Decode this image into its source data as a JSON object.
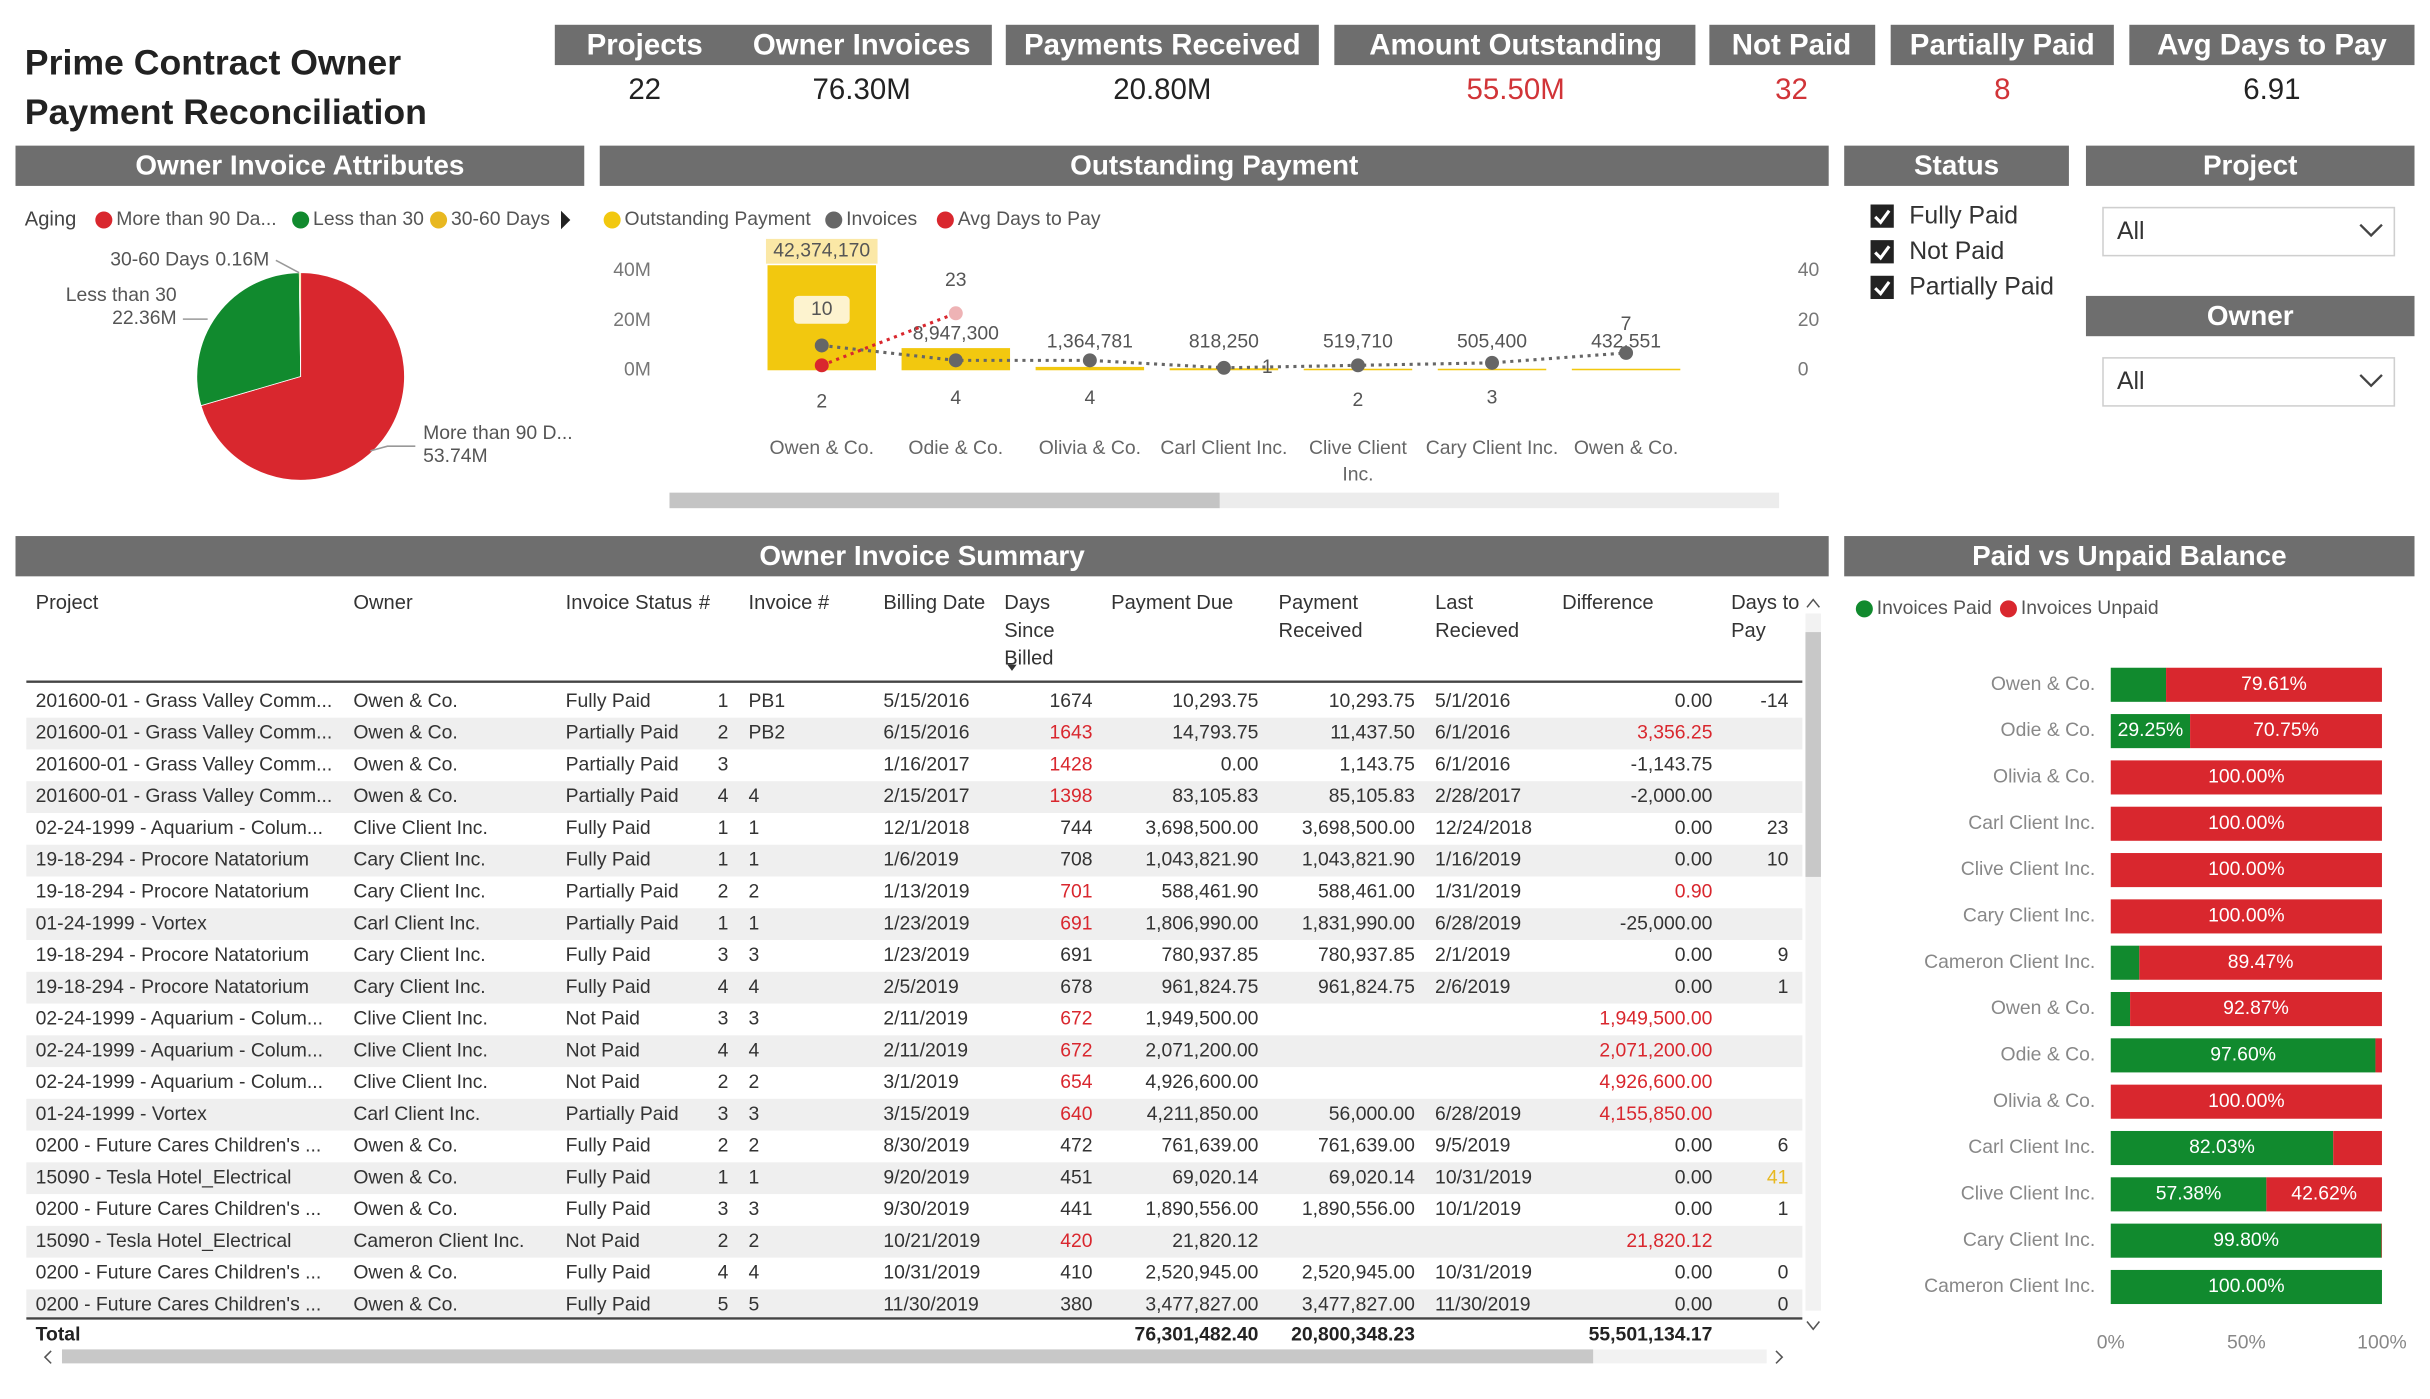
{
  "title": "Prime Contract Owner Payment Reconciliation",
  "kpis": [
    {
      "label": "Projects",
      "value": "22",
      "color": "#222222"
    },
    {
      "label": "Owner Invoices",
      "value": "76.30M",
      "color": "#222222"
    },
    {
      "label": "Payments Received",
      "value": "20.80M",
      "color": "#222222"
    },
    {
      "label": "Amount Outstanding",
      "value": "55.50M",
      "color": "#d13438"
    },
    {
      "label": "Not Paid",
      "value": "32",
      "color": "#d13438"
    },
    {
      "label": "Partially Paid",
      "value": "8",
      "color": "#d13438"
    },
    {
      "label": "Avg Days to Pay",
      "value": "6.91",
      "color": "#222222"
    }
  ],
  "slicers": {
    "status": {
      "title": "Status",
      "options": [
        "Fully Paid",
        "Not Paid",
        "Partially Paid"
      ],
      "checked": [
        true,
        true,
        true
      ]
    },
    "project": {
      "title": "Project",
      "selected": "All"
    },
    "owner": {
      "title": "Owner",
      "selected": "All"
    }
  },
  "chart_data": [
    {
      "type": "pie",
      "title": "Owner Invoice Attributes",
      "legend_title": "Aging",
      "categories": [
        "More than 90 Da...",
        "Less than 30",
        "30-60 Days"
      ],
      "label_names": [
        "More than 90 D...",
        "Less than 30",
        "30-60 Days"
      ],
      "values": [
        53.74,
        22.36,
        0.16
      ],
      "value_labels": [
        "53.74M",
        "22.36M",
        "0.16M"
      ],
      "colors": [
        "#d9272e",
        "#118a2e",
        "#e8b820"
      ]
    },
    {
      "type": "combo",
      "title": "Outstanding Payment",
      "categories": [
        "Owen & Co.",
        "Odie & Co.",
        "Olivia & Co.",
        "Carl Client Inc.",
        "Clive Client Inc.",
        "Cary Client Inc.",
        "Owen & Co."
      ],
      "series": [
        {
          "name": "Outstanding Payment",
          "type": "bar",
          "color": "#f2c80f",
          "values": [
            42374170,
            8947300,
            1364781,
            818250,
            519710,
            505400,
            432551
          ],
          "value_labels": [
            "42,374,170",
            "8,947,300",
            "1,364,781",
            "818,250",
            "519,710",
            "505,400",
            "432,551"
          ]
        },
        {
          "name": "Invoices",
          "type": "line",
          "axis": "y2",
          "color": "#666666",
          "line_style": "dotted",
          "values": [
            10,
            4,
            4,
            1,
            2,
            3,
            7
          ]
        },
        {
          "name": "Avg Days to Pay",
          "type": "line",
          "axis": "y2",
          "color": "#d9272e",
          "line_style": "dotted",
          "values": [
            2,
            23,
            null,
            null,
            null,
            null,
            null
          ]
        }
      ],
      "ylim": [
        0,
        40000000
      ],
      "yticks": [
        {
          "value": 0,
          "label": "0M"
        },
        {
          "value": 20000000,
          "label": "20M"
        },
        {
          "value": 40000000,
          "label": "40M"
        }
      ],
      "y2lim": [
        0,
        40
      ],
      "y2ticks": [
        0,
        20,
        40
      ]
    },
    {
      "type": "stacked_hbar",
      "title": "Paid vs Unpaid Balance",
      "categories": [
        "Owen & Co.",
        "Odie & Co.",
        "Olivia & Co.",
        "Carl Client Inc.",
        "Clive Client Inc.",
        "Cary Client Inc.",
        "Cameron Client Inc.",
        "Owen & Co.",
        "Odie & Co.",
        "Olivia & Co.",
        "Carl Client Inc.",
        "Clive Client Inc.",
        "Cary Client Inc.",
        "Cameron Client Inc."
      ],
      "series": [
        {
          "name": "Invoices Paid",
          "color": "#118a2e",
          "values": [
            20.39,
            29.25,
            0,
            0,
            0,
            0,
            10.53,
            7.13,
            97.6,
            0,
            82.03,
            57.38,
            99.8,
            100
          ],
          "value_labels": [
            null,
            "29.25%",
            null,
            null,
            null,
            null,
            null,
            null,
            "97.60%",
            null,
            "82.03%",
            "57.38%",
            "99.80%",
            "100.00%"
          ]
        },
        {
          "name": "Invoices Unpaid",
          "color": "#d9272e",
          "values": [
            79.61,
            70.75,
            100,
            100,
            100,
            100,
            89.47,
            92.87,
            2.4,
            100,
            17.97,
            42.62,
            0.2,
            0
          ],
          "value_labels": [
            "79.61%",
            "70.75%",
            "100.00%",
            "100.00%",
            "100.00%",
            "100.00%",
            "89.47%",
            "92.87%",
            null,
            "100.00%",
            null,
            "42.62%",
            null,
            null
          ]
        }
      ],
      "xlim": [
        0,
        100
      ],
      "xticks": [
        {
          "value": 0,
          "label": "0%"
        },
        {
          "value": 50,
          "label": "50%"
        },
        {
          "value": 100,
          "label": "100%"
        }
      ]
    }
  ],
  "table": {
    "title": "Owner Invoice Summary",
    "columns": [
      "Project",
      "Owner",
      "Invoice Status",
      "#",
      "Invoice #",
      "Billing Date",
      "Days Since Billed",
      "Payment Due",
      "Payment Received",
      "Last Recieved",
      "Difference",
      "Days to Pay"
    ],
    "rows": [
      [
        "201600-01 - Grass Valley Comm...",
        "Owen & Co.",
        "Fully Paid",
        "1",
        "PB1",
        "5/15/2016",
        "1674",
        "10,293.75",
        "10,293.75",
        "5/1/2016",
        "0.00",
        "-14"
      ],
      [
        "201600-01 - Grass Valley Comm...",
        "Owen & Co.",
        "Partially Paid",
        "2",
        "PB2",
        "6/15/2016",
        "1643",
        "14,793.75",
        "11,437.50",
        "6/1/2016",
        "3,356.25",
        null
      ],
      [
        "201600-01 - Grass Valley Comm...",
        "Owen & Co.",
        "Partially Paid",
        "3",
        null,
        "1/16/2017",
        "1428",
        "0.00",
        "1,143.75",
        "6/1/2016",
        "-1,143.75",
        null
      ],
      [
        "201600-01 - Grass Valley Comm...",
        "Owen & Co.",
        "Partially Paid",
        "4",
        "4",
        "2/15/2017",
        "1398",
        "83,105.83",
        "85,105.83",
        "2/28/2017",
        "-2,000.00",
        null
      ],
      [
        "02-24-1999 - Aquarium - Colum...",
        "Clive Client Inc.",
        "Fully Paid",
        "1",
        "1",
        "12/1/2018",
        "744",
        "3,698,500.00",
        "3,698,500.00",
        "12/24/2018",
        "0.00",
        "23"
      ],
      [
        "19-18-294 - Procore Natatorium",
        "Cary Client Inc.",
        "Fully Paid",
        "1",
        "1",
        "1/6/2019",
        "708",
        "1,043,821.90",
        "1,043,821.90",
        "1/16/2019",
        "0.00",
        "10"
      ],
      [
        "19-18-294 - Procore Natatorium",
        "Cary Client Inc.",
        "Partially Paid",
        "2",
        "2",
        "1/13/2019",
        "701",
        "588,461.90",
        "588,461.00",
        "1/31/2019",
        "0.90",
        null
      ],
      [
        "01-24-1999 - Vortex",
        "Carl Client Inc.",
        "Partially Paid",
        "1",
        "1",
        "1/23/2019",
        "691",
        "1,806,990.00",
        "1,831,990.00",
        "6/28/2019",
        "-25,000.00",
        null
      ],
      [
        "19-18-294 - Procore Natatorium",
        "Cary Client Inc.",
        "Fully Paid",
        "3",
        "3",
        "1/23/2019",
        "691",
        "780,937.85",
        "780,937.85",
        "2/1/2019",
        "0.00",
        "9"
      ],
      [
        "19-18-294 - Procore Natatorium",
        "Cary Client Inc.",
        "Fully Paid",
        "4",
        "4",
        "2/5/2019",
        "678",
        "961,824.75",
        "961,824.75",
        "2/6/2019",
        "0.00",
        "1"
      ],
      [
        "02-24-1999 - Aquarium - Colum...",
        "Clive Client Inc.",
        "Not Paid",
        "3",
        "3",
        "2/11/2019",
        "672",
        "1,949,500.00",
        null,
        null,
        "1,949,500.00",
        null
      ],
      [
        "02-24-1999 - Aquarium - Colum...",
        "Clive Client Inc.",
        "Not Paid",
        "4",
        "4",
        "2/11/2019",
        "672",
        "2,071,200.00",
        null,
        null,
        "2,071,200.00",
        null
      ],
      [
        "02-24-1999 - Aquarium - Colum...",
        "Clive Client Inc.",
        "Not Paid",
        "2",
        "2",
        "3/1/2019",
        "654",
        "4,926,600.00",
        null,
        null,
        "4,926,600.00",
        null
      ],
      [
        "01-24-1999 - Vortex",
        "Carl Client Inc.",
        "Partially Paid",
        "3",
        "3",
        "3/15/2019",
        "640",
        "4,211,850.00",
        "56,000.00",
        "6/28/2019",
        "4,155,850.00",
        null
      ],
      [
        "0200 - Future Cares Children's ...",
        "Owen & Co.",
        "Fully Paid",
        "2",
        "2",
        "8/30/2019",
        "472",
        "761,639.00",
        "761,639.00",
        "9/5/2019",
        "0.00",
        "6"
      ],
      [
        "15090 - Tesla Hotel_Electrical",
        "Owen & Co.",
        "Fully Paid",
        "1",
        "1",
        "9/20/2019",
        "451",
        "69,020.14",
        "69,020.14",
        "10/31/2019",
        "0.00",
        "41"
      ],
      [
        "0200 - Future Cares Children's ...",
        "Owen & Co.",
        "Fully Paid",
        "3",
        "3",
        "9/30/2019",
        "441",
        "1,890,556.00",
        "1,890,556.00",
        "10/1/2019",
        "0.00",
        "1"
      ],
      [
        "15090 - Tesla Hotel_Electrical",
        "Cameron Client Inc.",
        "Not Paid",
        "2",
        "2",
        "10/21/2019",
        "420",
        "21,820.12",
        null,
        null,
        "21,820.12",
        null
      ],
      [
        "0200 - Future Cares Children's ...",
        "Owen & Co.",
        "Fully Paid",
        "4",
        "4",
        "10/31/2019",
        "410",
        "2,520,945.00",
        "2,520,945.00",
        "10/31/2019",
        "0.00",
        "0"
      ],
      [
        "0200 - Future Cares Children's ...",
        "Owen & Co.",
        "Fully Paid",
        "5",
        "5",
        "11/30/2019",
        "380",
        "3,477,827.00",
        "3,477,827.00",
        "11/30/2019",
        "0.00",
        "0"
      ]
    ],
    "red_cells": [
      [
        1,
        6
      ],
      [
        2,
        6
      ],
      [
        3,
        6
      ],
      [
        6,
        6
      ],
      [
        7,
        6
      ],
      [
        10,
        6
      ],
      [
        11,
        6
      ],
      [
        12,
        6
      ],
      [
        13,
        6
      ],
      [
        17,
        6
      ],
      [
        1,
        10
      ],
      [
        6,
        10
      ],
      [
        10,
        10
      ],
      [
        11,
        10
      ],
      [
        12,
        10
      ],
      [
        13,
        10
      ],
      [
        17,
        10
      ]
    ],
    "red_color": "#d9272e",
    "yellow_cells": [
      [
        15,
        11
      ]
    ],
    "yellow_color": "#e8b820",
    "total": {
      "label": "Total",
      "payment_due": "76,301,482.40",
      "payment_received": "20,800,348.23",
      "difference": "55,501,134.17"
    }
  }
}
